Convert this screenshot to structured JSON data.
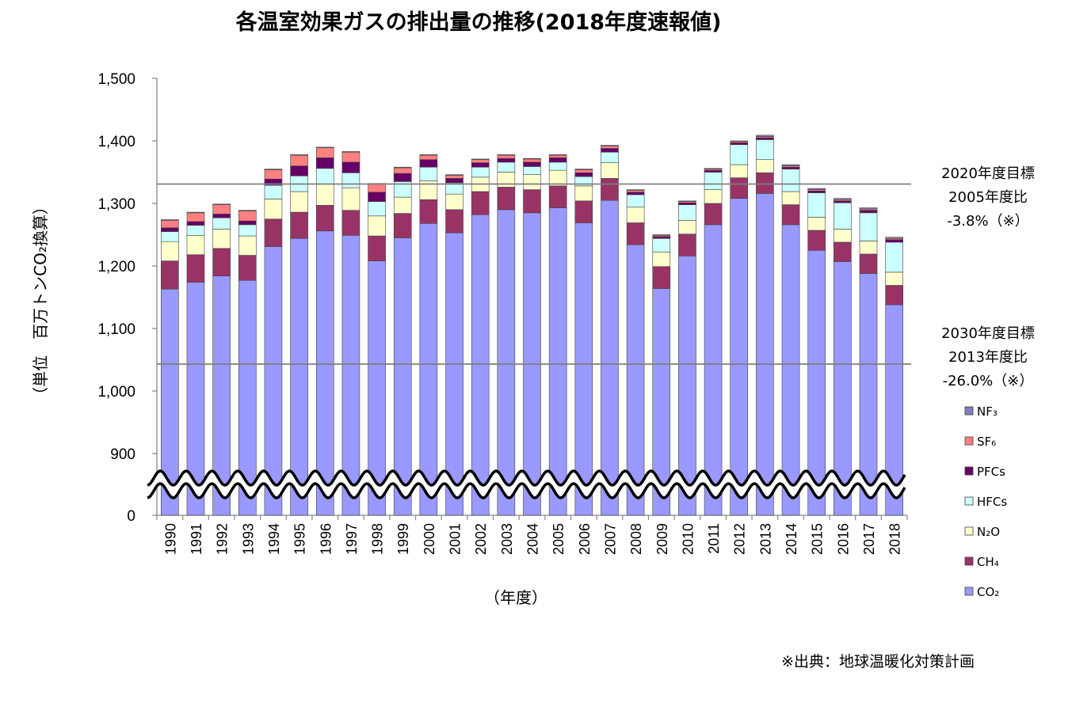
{
  "chart_data": {
    "type": "bar",
    "stacked": true,
    "title": "各温室効果ガスの排出量の推移(2018年度速報値)",
    "ylabel": "（単位　百万トンCO₂換算）",
    "xlabel": "（年度）",
    "ylim": [
      0,
      1500
    ],
    "axis_break_below": 900,
    "yticks": [
      "0",
      "900",
      "1,000",
      "1,100",
      "1,200",
      "1,300",
      "1,400",
      "1,500"
    ],
    "categories": [
      "1990",
      "1991",
      "1992",
      "1993",
      "1994",
      "1995",
      "1996",
      "1997",
      "1998",
      "1999",
      "2000",
      "2001",
      "2002",
      "2003",
      "2004",
      "2005",
      "2006",
      "2007",
      "2008",
      "2009",
      "2010",
      "2011",
      "2012",
      "2013",
      "2014",
      "2015",
      "2016",
      "2017",
      "2018"
    ],
    "series": [
      {
        "name": "CO₂",
        "color": "#9999ff",
        "values": [
          1163,
          1174,
          1184,
          1177,
          1231,
          1244,
          1256,
          1249,
          1208,
          1245,
          1268,
          1253,
          1282,
          1290,
          1285,
          1293,
          1269,
          1305,
          1234,
          1164,
          1216,
          1266,
          1308,
          1316,
          1266,
          1225,
          1207,
          1188,
          1138
        ]
      },
      {
        "name": "CH₄",
        "color": "#993366",
        "values": [
          45,
          44,
          44,
          40,
          44,
          42,
          41,
          40,
          40,
          39,
          38,
          37,
          37,
          36,
          37,
          35,
          35,
          35,
          35,
          35,
          35,
          34,
          33,
          33,
          32,
          32,
          31,
          31,
          31
        ]
      },
      {
        "name": "N₂O",
        "color": "#ffffcc",
        "values": [
          31,
          31,
          31,
          31,
          32,
          33,
          34,
          36,
          32,
          26,
          30,
          25,
          23,
          24,
          24,
          25,
          24,
          25,
          25,
          23,
          22,
          22,
          21,
          21,
          21,
          21,
          21,
          21,
          21
        ]
      },
      {
        "name": "HFCs",
        "color": "#ccffff",
        "values": [
          16,
          16,
          18,
          18,
          22,
          25,
          25,
          24,
          23,
          25,
          22,
          18,
          16,
          16,
          13,
          13,
          15,
          17,
          20,
          22,
          25,
          28,
          32,
          32,
          36,
          39,
          42,
          45,
          48
        ]
      },
      {
        "name": "PFCs",
        "color": "#660066",
        "values": [
          6,
          6,
          6,
          6,
          10,
          16,
          17,
          17,
          15,
          13,
          12,
          7,
          7,
          6,
          7,
          7,
          6,
          6,
          4,
          3,
          3,
          3,
          3,
          3,
          3,
          3,
          3,
          4,
          4
        ]
      },
      {
        "name": "SF₆",
        "color": "#ff8080",
        "values": [
          12,
          14,
          15,
          16,
          15,
          17,
          16,
          16,
          13,
          9,
          7,
          5,
          5,
          5,
          5,
          4,
          5,
          4,
          3,
          2,
          2,
          2,
          2,
          2,
          2,
          2,
          2,
          2,
          2
        ]
      },
      {
        "name": "NF₃",
        "color": "#8080c0",
        "values": [
          1,
          1,
          1,
          1,
          1,
          1,
          1,
          1,
          1,
          1,
          1,
          1,
          1,
          1,
          1,
          1,
          1,
          1,
          1,
          1,
          1,
          1,
          1,
          2,
          2,
          2,
          2,
          2,
          2
        ]
      }
    ],
    "reference_lines": [
      {
        "value": 1331,
        "label_lines": [
          "2020年度目標",
          "2005年度比",
          "-3.8%（※）"
        ]
      },
      {
        "value": 1043,
        "label_lines": [
          "2030年度目標",
          "2013年度比",
          "-26.0%（※）"
        ]
      }
    ],
    "legend_position": "right",
    "grid": false
  },
  "source_note": "※出典：地球温暖化対策計画"
}
